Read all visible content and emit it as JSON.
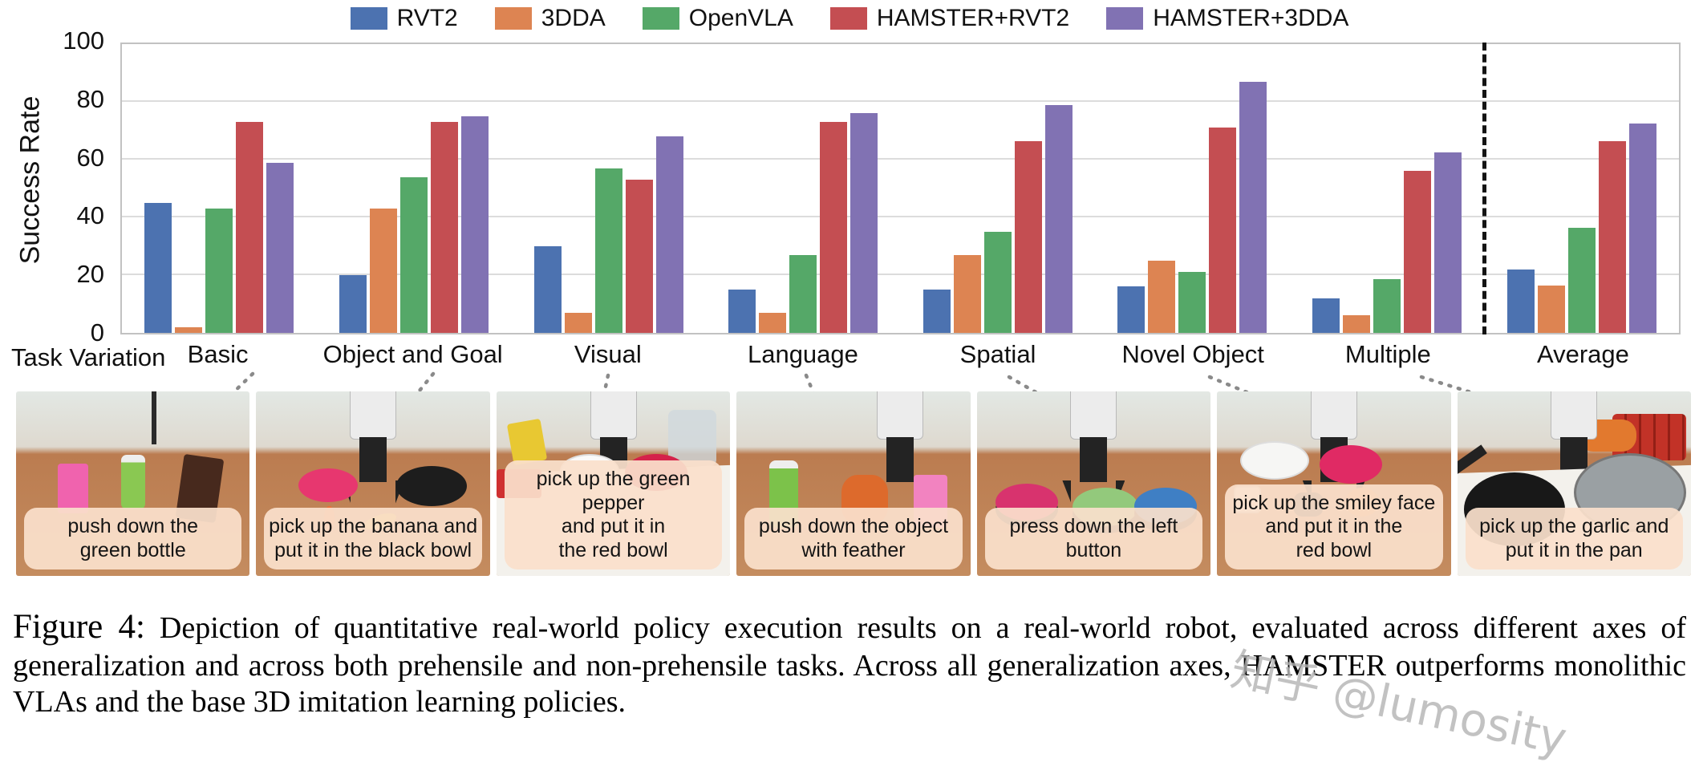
{
  "legend": {
    "items": [
      {
        "label": "RVT2",
        "color": "#4C72B0"
      },
      {
        "label": "3DDA",
        "color": "#DD8452"
      },
      {
        "label": "OpenVLA",
        "color": "#55A868"
      },
      {
        "label": "HAMSTER+RVT2",
        "color": "#C44E52"
      },
      {
        "label": "HAMSTER+3DDA",
        "color": "#8172B3"
      }
    ]
  },
  "chart_data": {
    "type": "bar",
    "title": "",
    "ylabel": "Success Rate",
    "xlabel": "Task Variation",
    "ylim": [
      0,
      100
    ],
    "yticks": [
      0,
      20,
      40,
      60,
      80,
      100
    ],
    "grid": "horizontal",
    "legend_position": "top",
    "separator_after_category": "Multiple",
    "categories": [
      "Basic",
      "Object and Goal",
      "Visual",
      "Language",
      "Spatial",
      "Novel Object",
      "Multiple",
      "Average"
    ],
    "series": [
      {
        "name": "RVT2",
        "color": "#4C72B0",
        "values": [
          45,
          20,
          30,
          15,
          15,
          16,
          12,
          22
        ]
      },
      {
        "name": "3DDA",
        "color": "#DD8452",
        "values": [
          2,
          43,
          7,
          7,
          27,
          25,
          6,
          16.5
        ]
      },
      {
        "name": "OpenVLA",
        "color": "#55A868",
        "values": [
          43,
          54,
          57,
          27,
          35,
          21,
          18.5,
          36.5
        ]
      },
      {
        "name": "HAMSTER+RVT2",
        "color": "#C44E52",
        "values": [
          73,
          73,
          53,
          73,
          66.5,
          71,
          56,
          66.5
        ]
      },
      {
        "name": "HAMSTER+3DDA",
        "color": "#8172B3",
        "values": [
          59,
          75,
          68,
          76,
          79,
          87,
          62.5,
          72.5
        ]
      }
    ]
  },
  "images": [
    {
      "caption": "push down the\ngreen bottle"
    },
    {
      "caption": "pick up the banana and\nput it in the black bowl"
    },
    {
      "caption": "pick up the green pepper\nand put it in\nthe red bowl"
    },
    {
      "caption": "push down the object\nwith feather"
    },
    {
      "caption": "press down the left button"
    },
    {
      "caption": "pick up the smiley face\nand put it in the\nred bowl"
    },
    {
      "caption": "pick up the garlic and\nput it in the pan"
    }
  ],
  "figure_caption": {
    "label": "Figure 4:",
    "text": "Depiction of quantitative real-world policy execution results on a real-world robot, evaluated across different axes of generalization and across both prehensile and non-prehensile tasks. Across all generalization axes, HAMSTER outperforms monolithic VLAs and the base 3D imitation learning policies."
  },
  "watermark": "知乎 @lumosity"
}
